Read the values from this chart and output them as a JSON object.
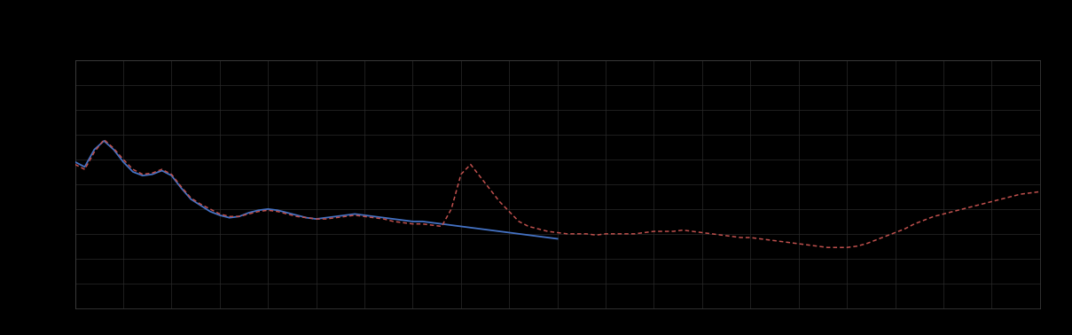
{
  "background_color": "#000000",
  "plot_background_color": "#000000",
  "grid_color": "#2a2a2a",
  "blue_line_color": "#4472C4",
  "red_line_color": "#C0504D",
  "xlim": [
    0,
    100
  ],
  "ylim": [
    0,
    10
  ],
  "legend_labels": [
    "",
    ""
  ],
  "blue_x": [
    0,
    1,
    2,
    3,
    4,
    5,
    6,
    7,
    8,
    9,
    10,
    11,
    12,
    13,
    14,
    15,
    16,
    17,
    18,
    19,
    20,
    21,
    22,
    23,
    24,
    25,
    26,
    27,
    28,
    29,
    30,
    31,
    32,
    33,
    34,
    35,
    36,
    37,
    38,
    39,
    40,
    41,
    42,
    43,
    44,
    45,
    46,
    47,
    48,
    49,
    50
  ],
  "blue_y": [
    5.9,
    5.7,
    6.4,
    6.75,
    6.4,
    5.9,
    5.5,
    5.35,
    5.4,
    5.55,
    5.35,
    4.85,
    4.4,
    4.15,
    3.9,
    3.75,
    3.65,
    3.7,
    3.85,
    3.95,
    4.0,
    3.95,
    3.85,
    3.75,
    3.65,
    3.6,
    3.65,
    3.7,
    3.75,
    3.8,
    3.75,
    3.7,
    3.65,
    3.6,
    3.55,
    3.5,
    3.5,
    3.45,
    3.4,
    3.35,
    3.3,
    3.25,
    3.2,
    3.15,
    3.1,
    3.05,
    3.0,
    2.95,
    2.9,
    2.85,
    2.8
  ],
  "red_x": [
    0,
    1,
    2,
    3,
    4,
    5,
    6,
    7,
    8,
    9,
    10,
    11,
    12,
    13,
    14,
    15,
    16,
    17,
    18,
    19,
    20,
    21,
    22,
    23,
    24,
    25,
    26,
    27,
    28,
    29,
    30,
    31,
    32,
    33,
    34,
    35,
    36,
    37,
    38,
    39,
    40,
    41,
    42,
    43,
    44,
    45,
    46,
    47,
    48,
    49,
    50,
    51,
    52,
    53,
    54,
    55,
    56,
    57,
    58,
    59,
    60,
    61,
    62,
    63,
    64,
    65,
    66,
    67,
    68,
    69,
    70,
    71,
    72,
    73,
    74,
    75,
    76,
    77,
    78,
    79,
    80,
    81,
    82,
    83,
    84,
    85,
    86,
    87,
    88,
    89,
    90,
    91,
    92,
    93,
    94,
    95,
    96,
    97,
    98,
    99,
    100
  ],
  "red_y": [
    5.8,
    5.6,
    6.3,
    6.8,
    6.45,
    6.0,
    5.6,
    5.4,
    5.45,
    5.6,
    5.4,
    4.9,
    4.45,
    4.2,
    4.0,
    3.8,
    3.7,
    3.7,
    3.8,
    3.9,
    3.95,
    3.9,
    3.8,
    3.7,
    3.65,
    3.6,
    3.6,
    3.65,
    3.7,
    3.75,
    3.7,
    3.65,
    3.6,
    3.5,
    3.45,
    3.4,
    3.4,
    3.35,
    3.3,
    4.0,
    5.4,
    5.8,
    5.3,
    4.8,
    4.3,
    3.9,
    3.5,
    3.3,
    3.2,
    3.1,
    3.05,
    3.0,
    3.0,
    3.0,
    2.95,
    3.0,
    3.0,
    3.0,
    3.0,
    3.05,
    3.1,
    3.1,
    3.1,
    3.15,
    3.1,
    3.05,
    3.0,
    2.95,
    2.9,
    2.85,
    2.85,
    2.8,
    2.75,
    2.7,
    2.65,
    2.6,
    2.55,
    2.5,
    2.45,
    2.45,
    2.45,
    2.5,
    2.6,
    2.75,
    2.9,
    3.05,
    3.2,
    3.4,
    3.55,
    3.7,
    3.8,
    3.9,
    4.0,
    4.1,
    4.2,
    4.3,
    4.4,
    4.5,
    4.6,
    4.65,
    4.7
  ]
}
